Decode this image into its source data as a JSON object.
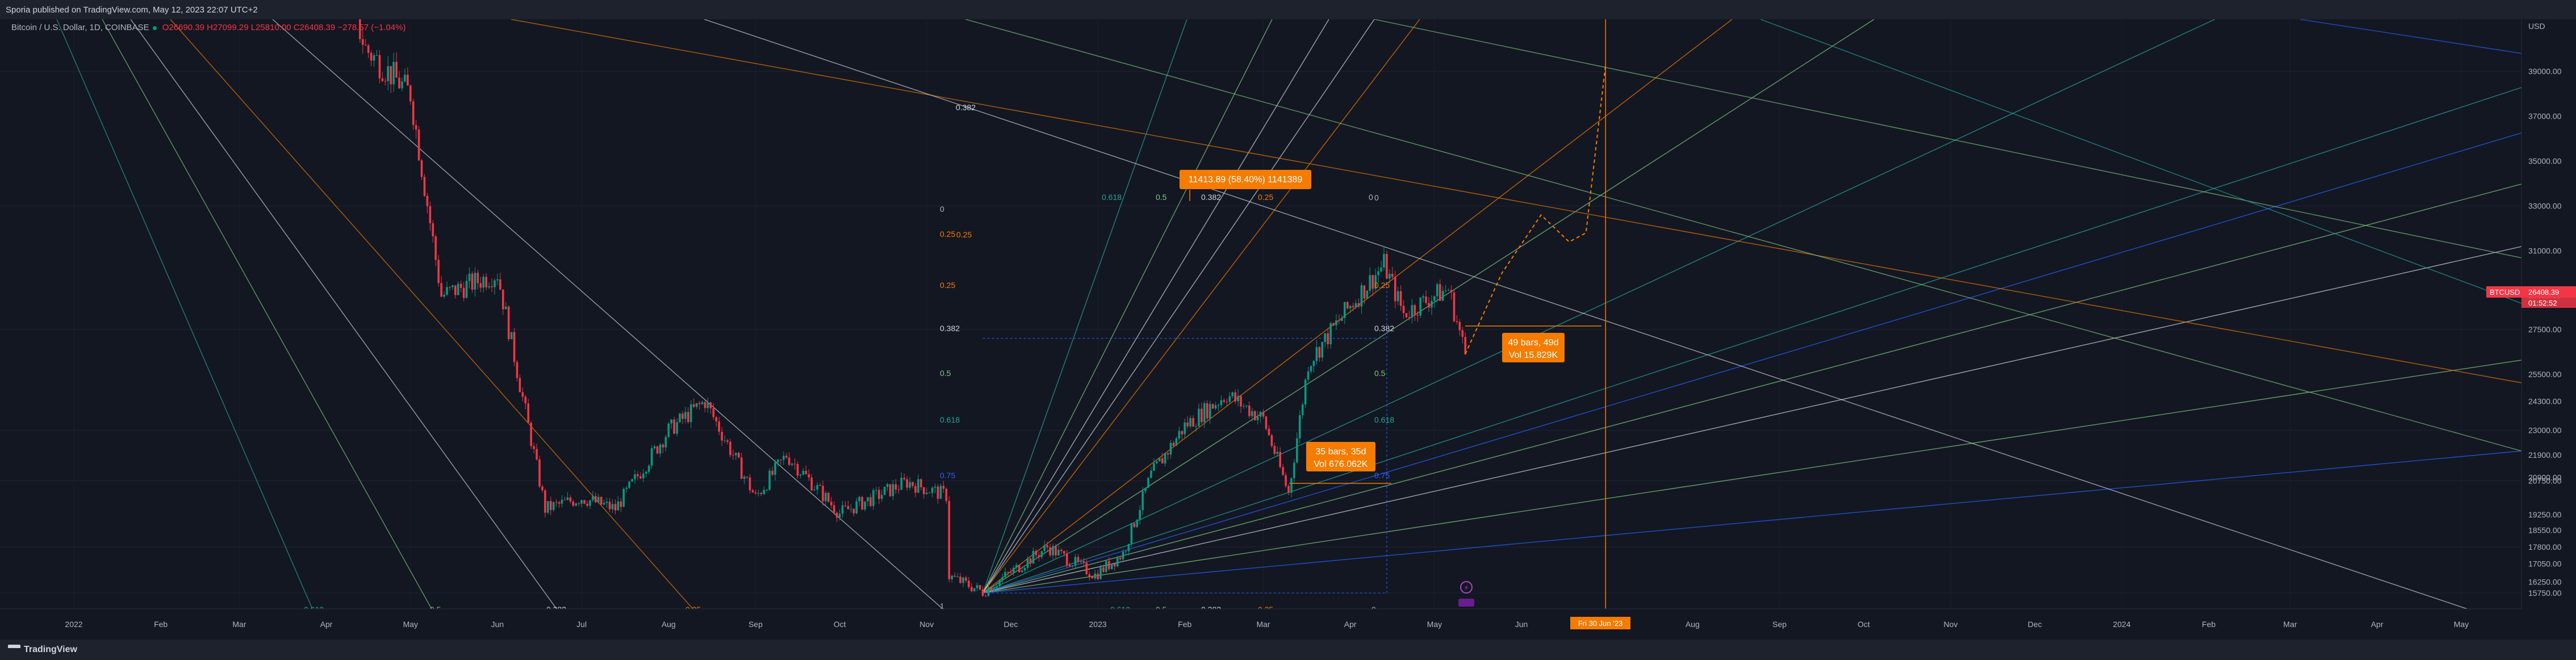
{
  "header": {
    "published": "Sporia published on TradingView.com, May 12, 2023 22:07 UTC+2"
  },
  "legend": {
    "symbol": "Bitcoin / U.S. Dollar, 1D, COINBASE",
    "o": "O26690.39",
    "h": "H27099.29",
    "l": "L25810.00",
    "c": "C26408.39",
    "change": "−278.57 (−1.04%)"
  },
  "footer": {
    "brand": "TradingView"
  },
  "colors": {
    "background": "#131722",
    "up": "#089981",
    "down": "#f23645",
    "orange": "#f57c00",
    "teal": "#26a69a",
    "green": "#81c784",
    "blue": "#2962ff"
  },
  "chart_data": {
    "type": "candlestick",
    "symbol": "BTCUSD",
    "last_price": "26408.39",
    "countdown": "01:52:52",
    "currency_label": "USD",
    "y_ticks": [
      "39000.00",
      "37000.00",
      "35000.00",
      "33000.00",
      "31000.00",
      "29000.00",
      "27500.00",
      "25500.00",
      "24300.00",
      "23000.00",
      "21900.00",
      "20900.00",
      "20750.00",
      "19250.00",
      "18550.00",
      "17800.00",
      "17050.00",
      "16250.00",
      "15750.00"
    ],
    "x_ticks": [
      "2022",
      "Feb",
      "Mar",
      "Apr",
      "May",
      "Jun",
      "Jul",
      "Aug",
      "Sep",
      "Oct",
      "Nov",
      "Dec",
      "2023",
      "Feb",
      "Mar",
      "Apr",
      "May",
      "Jun",
      "Jul",
      "Aug",
      "Sep",
      "Oct",
      "Nov",
      "Dec",
      "2024",
      "Feb",
      "Mar",
      "Apr",
      "May"
    ],
    "x_axis_highlight": "Fri 30 Jun '23",
    "price_path": [
      {
        "date": "2022-01-01",
        "price": 47000
      },
      {
        "date": "2022-01-20",
        "price": 42000
      },
      {
        "date": "2022-02-01",
        "price": 43000
      },
      {
        "date": "2022-02-15",
        "price": 44000
      },
      {
        "date": "2022-03-01",
        "price": 43500
      },
      {
        "date": "2022-03-28",
        "price": 47200
      },
      {
        "date": "2022-04-15",
        "price": 40000
      },
      {
        "date": "2022-05-01",
        "price": 38000
      },
      {
        "date": "2022-05-12",
        "price": 29000
      },
      {
        "date": "2022-06-01",
        "price": 30000
      },
      {
        "date": "2022-06-18",
        "price": 19500
      },
      {
        "date": "2022-07-01",
        "price": 20000
      },
      {
        "date": "2022-07-13",
        "price": 19500
      },
      {
        "date": "2022-08-01",
        "price": 23000
      },
      {
        "date": "2022-08-14",
        "price": 24300
      },
      {
        "date": "2022-09-01",
        "price": 20000
      },
      {
        "date": "2022-09-12",
        "price": 21900
      },
      {
        "date": "2022-10-01",
        "price": 19300
      },
      {
        "date": "2022-10-25",
        "price": 20700
      },
      {
        "date": "2022-11-08",
        "price": 20100
      },
      {
        "date": "2022-11-09",
        "price": 16500
      },
      {
        "date": "2022-11-21",
        "price": 15800
      },
      {
        "date": "2022-12-14",
        "price": 17800
      },
      {
        "date": "2022-12-31",
        "price": 16550
      },
      {
        "date": "2023-01-10",
        "price": 17500
      },
      {
        "date": "2023-01-20",
        "price": 21000
      },
      {
        "date": "2023-02-01",
        "price": 23200
      },
      {
        "date": "2023-02-16",
        "price": 24600
      },
      {
        "date": "2023-03-01",
        "price": 23500
      },
      {
        "date": "2023-03-10",
        "price": 20200
      },
      {
        "date": "2023-03-17",
        "price": 26000
      },
      {
        "date": "2023-03-31",
        "price": 28400
      },
      {
        "date": "2023-04-13",
        "price": 30400
      },
      {
        "date": "2023-04-20",
        "price": 28200
      },
      {
        "date": "2023-05-01",
        "price": 29000
      },
      {
        "date": "2023-05-06",
        "price": 29300
      },
      {
        "date": "2023-05-12",
        "price": 26408
      }
    ],
    "projection_path": [
      {
        "date": "2023-05-12",
        "price": 26400
      },
      {
        "date": "2023-05-25",
        "price": 30000
      },
      {
        "date": "2023-06-08",
        "price": 32600
      },
      {
        "date": "2023-06-18",
        "price": 31400
      },
      {
        "date": "2023-06-24",
        "price": 31800
      },
      {
        "date": "2023-07-01",
        "price": 39300
      }
    ],
    "fib_labels_top": [
      "0.618",
      "0.5",
      "0.382",
      "0.25",
      "0"
    ],
    "fib_labels_left": [
      "0",
      "0.25",
      "0.25",
      "0.382",
      "0.5",
      "0.618",
      "0.75",
      "1"
    ],
    "fib_labels_right": [
      "0",
      "0.25",
      "0.382",
      "0.5",
      "0.618",
      "0.75"
    ],
    "fib_labels_bottom": [
      "0.618",
      "0.5",
      "0.382",
      "0.25",
      "0"
    ],
    "fib_labels_far": [
      "0.382",
      "0.25",
      "0.618",
      "0.5",
      "0.382",
      "0.25"
    ],
    "annotations": [
      {
        "id": "price-range",
        "lines": [
          "11413.89 (58.40%) 1141389"
        ]
      },
      {
        "id": "range-may",
        "lines": [
          "49 bars, 49d",
          "Vol 15.829K"
        ]
      },
      {
        "id": "range-mar",
        "lines": [
          "35 bars, 35d",
          "Vol 676.062K"
        ]
      }
    ],
    "event_icon": "⚡"
  }
}
